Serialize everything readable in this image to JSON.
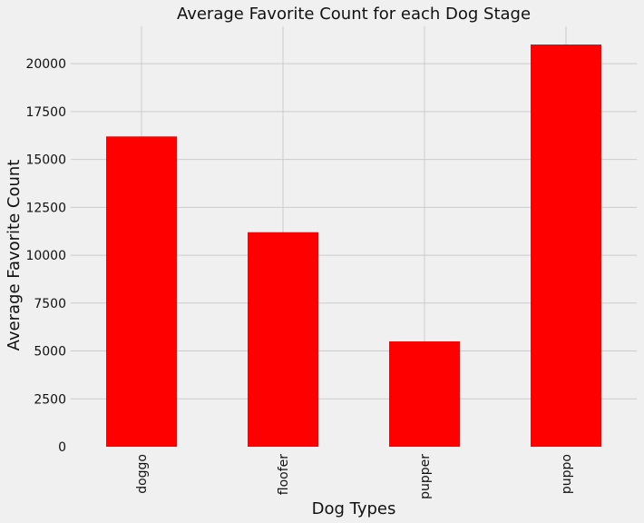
{
  "chart_data": {
    "type": "bar",
    "title": "Average Favorite Count for each Dog Stage",
    "xlabel": "Dog Types",
    "ylabel": "Average Favorite Count",
    "categories": [
      "doggo",
      "floofer",
      "pupper",
      "puppo"
    ],
    "values": [
      16200,
      11200,
      5500,
      21000
    ],
    "ylim": [
      0,
      21950
    ],
    "yticks": [
      0,
      2500,
      5000,
      7500,
      10000,
      12500,
      15000,
      17500,
      20000
    ],
    "ytick_labels": [
      "0",
      "2500",
      "5000",
      "7500",
      "10000",
      "12500",
      "15000",
      "17500",
      "20000"
    ],
    "grid": true,
    "bar_color": "#ff0000",
    "background_color": "#f0f0f0",
    "grid_color": "#cbcbcb"
  }
}
